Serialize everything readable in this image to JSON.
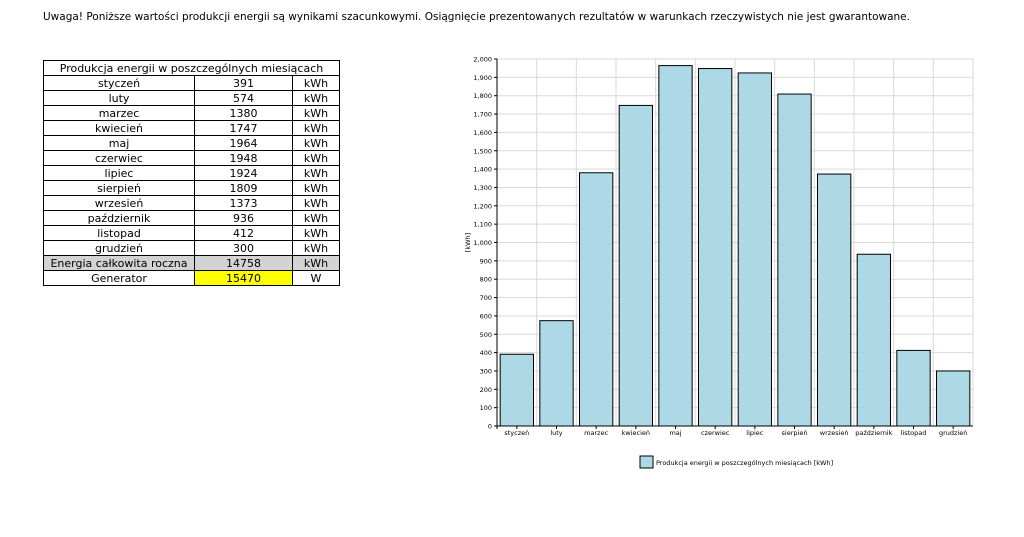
{
  "warning": "Uwaga! Poniższe wartości produkcji energii są wynikami szacunkowymi. Osiągnięcie prezentowanych rezultatów w warunkach rzeczywistych nie jest gwarantowane.",
  "table": {
    "title": "Produkcja energii w poszczególnych miesiącach",
    "rows": [
      {
        "month": "styczeń",
        "value": "391",
        "unit": "kWh"
      },
      {
        "month": "luty",
        "value": "574",
        "unit": "kWh"
      },
      {
        "month": "marzec",
        "value": "1380",
        "unit": "kWh"
      },
      {
        "month": "kwiecień",
        "value": "1747",
        "unit": "kWh"
      },
      {
        "month": "maj",
        "value": "1964",
        "unit": "kWh"
      },
      {
        "month": "czerwiec",
        "value": "1948",
        "unit": "kWh"
      },
      {
        "month": "lipiec",
        "value": "1924",
        "unit": "kWh"
      },
      {
        "month": "sierpień",
        "value": "1809",
        "unit": "kWh"
      },
      {
        "month": "wrzesień",
        "value": "1373",
        "unit": "kWh"
      },
      {
        "month": "październik",
        "value": "936",
        "unit": "kWh"
      },
      {
        "month": "listopad",
        "value": "412",
        "unit": "kWh"
      },
      {
        "month": "grudzień",
        "value": "300",
        "unit": "kWh"
      }
    ],
    "total": {
      "label": "Energia całkowita roczna",
      "value": "14758",
      "unit": "kWh"
    },
    "generator": {
      "label": "Generator",
      "value": "15470",
      "unit": "W"
    }
  },
  "chart_data": {
    "type": "bar",
    "categories": [
      "styczeń",
      "luty",
      "marzec",
      "kwiecień",
      "maj",
      "czerwiec",
      "lipiec",
      "sierpień",
      "wrzesień",
      "październik",
      "listopad",
      "grudzień"
    ],
    "series": [
      {
        "name": "Produkcja energii w poszczególnych miesiącach [kWh]",
        "values": [
          391,
          574,
          1380,
          1747,
          1964,
          1948,
          1924,
          1809,
          1373,
          936,
          412,
          300
        ],
        "color": "#add8e6"
      }
    ],
    "ylabel": "[kWh]",
    "ylim": [
      0,
      2000
    ],
    "yticks": [
      "0",
      "100",
      "200",
      "300",
      "400",
      "500",
      "600",
      "700",
      "800",
      "900",
      "1,000",
      "1,100",
      "1,200",
      "1,300",
      "1,400",
      "1,500",
      "1,600",
      "1,700",
      "1,800",
      "1,900",
      "2,000"
    ],
    "grid": true,
    "legend": "bottom"
  }
}
